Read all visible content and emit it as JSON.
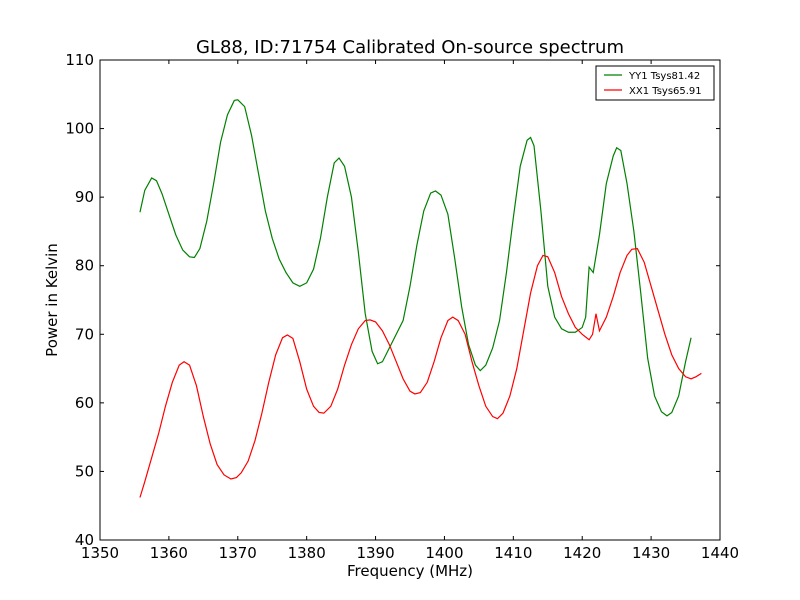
{
  "chart_data": {
    "type": "line",
    "title": "GL88, ID:71754 Calibrated On-source spectrum",
    "xlabel": "Frequency (MHz)",
    "ylabel": "Power in Kelvin",
    "xlim": [
      1350,
      1440
    ],
    "ylim": [
      40,
      110
    ],
    "xticks": [
      1350,
      1360,
      1370,
      1380,
      1390,
      1400,
      1410,
      1420,
      1430,
      1440
    ],
    "yticks": [
      40,
      50,
      60,
      70,
      80,
      90,
      100,
      110
    ],
    "grid": false,
    "legend_position": "top-right",
    "series": [
      {
        "name": "YY1 Tsys81.42",
        "color": "#008000",
        "points": [
          [
            1355.8,
            87.8
          ],
          [
            1356.5,
            91.0
          ],
          [
            1357.5,
            92.8
          ],
          [
            1358.2,
            92.4
          ],
          [
            1359.0,
            90.5
          ],
          [
            1360.0,
            87.5
          ],
          [
            1361.0,
            84.5
          ],
          [
            1362.0,
            82.3
          ],
          [
            1363.0,
            81.3
          ],
          [
            1363.7,
            81.2
          ],
          [
            1364.5,
            82.5
          ],
          [
            1365.5,
            86.5
          ],
          [
            1366.5,
            92.0
          ],
          [
            1367.5,
            98.0
          ],
          [
            1368.5,
            102.0
          ],
          [
            1369.5,
            104.1
          ],
          [
            1370.0,
            104.2
          ],
          [
            1371.0,
            103.2
          ],
          [
            1372.0,
            99.0
          ],
          [
            1373.0,
            93.5
          ],
          [
            1374.0,
            88.0
          ],
          [
            1375.0,
            84.0
          ],
          [
            1376.0,
            81.0
          ],
          [
            1377.0,
            79.0
          ],
          [
            1378.0,
            77.5
          ],
          [
            1379.0,
            77.0
          ],
          [
            1380.0,
            77.5
          ],
          [
            1381.0,
            79.5
          ],
          [
            1382.0,
            84.0
          ],
          [
            1383.0,
            90.0
          ],
          [
            1384.0,
            95.0
          ],
          [
            1384.7,
            95.7
          ],
          [
            1385.5,
            94.5
          ],
          [
            1386.5,
            90.0
          ],
          [
            1387.5,
            82.0
          ],
          [
            1388.5,
            73.0
          ],
          [
            1389.5,
            67.5
          ],
          [
            1390.3,
            65.7
          ],
          [
            1391.0,
            66.0
          ],
          [
            1392.0,
            68.0
          ],
          [
            1393.0,
            70.0
          ],
          [
            1394.0,
            72.0
          ],
          [
            1395.0,
            77.0
          ],
          [
            1396.0,
            83.0
          ],
          [
            1397.0,
            88.0
          ],
          [
            1398.0,
            90.6
          ],
          [
            1398.7,
            90.9
          ],
          [
            1399.5,
            90.3
          ],
          [
            1400.5,
            87.5
          ],
          [
            1401.5,
            81.0
          ],
          [
            1402.5,
            74.0
          ],
          [
            1403.5,
            68.5
          ],
          [
            1404.5,
            65.5
          ],
          [
            1405.2,
            64.7
          ],
          [
            1406.0,
            65.5
          ],
          [
            1407.0,
            68.0
          ],
          [
            1408.0,
            72.0
          ],
          [
            1409.0,
            79.0
          ],
          [
            1410.0,
            87.0
          ],
          [
            1411.0,
            94.5
          ],
          [
            1412.0,
            98.3
          ],
          [
            1412.5,
            98.7
          ],
          [
            1413.0,
            97.5
          ],
          [
            1414.0,
            88.0
          ],
          [
            1415.0,
            77.0
          ],
          [
            1416.0,
            72.5
          ],
          [
            1417.0,
            70.8
          ],
          [
            1418.0,
            70.3
          ],
          [
            1419.0,
            70.3
          ],
          [
            1420.0,
            71.0
          ],
          [
            1420.5,
            72.5
          ],
          [
            1421.0,
            79.8
          ],
          [
            1421.6,
            79.0
          ],
          [
            1422.5,
            84.5
          ],
          [
            1423.5,
            92.0
          ],
          [
            1424.5,
            96.0
          ],
          [
            1425.0,
            97.2
          ],
          [
            1425.6,
            96.8
          ],
          [
            1426.5,
            92.0
          ],
          [
            1427.5,
            85.0
          ],
          [
            1428.5,
            76.0
          ],
          [
            1429.5,
            66.5
          ],
          [
            1430.5,
            61.0
          ],
          [
            1431.5,
            58.7
          ],
          [
            1432.3,
            58.1
          ],
          [
            1433.0,
            58.6
          ],
          [
            1434.0,
            61.0
          ],
          [
            1435.0,
            66.0
          ],
          [
            1435.8,
            69.5
          ]
        ]
      },
      {
        "name": "XX1 Tsys65.91",
        "color": "#ff0000",
        "points": [
          [
            1355.8,
            46.2
          ],
          [
            1356.5,
            48.5
          ],
          [
            1357.5,
            52.0
          ],
          [
            1358.5,
            55.5
          ],
          [
            1359.5,
            59.5
          ],
          [
            1360.5,
            63.0
          ],
          [
            1361.5,
            65.5
          ],
          [
            1362.2,
            66.0
          ],
          [
            1363.0,
            65.5
          ],
          [
            1364.0,
            62.5
          ],
          [
            1365.0,
            58.0
          ],
          [
            1366.0,
            54.0
          ],
          [
            1367.0,
            51.0
          ],
          [
            1368.0,
            49.5
          ],
          [
            1369.0,
            48.9
          ],
          [
            1369.8,
            49.1
          ],
          [
            1370.5,
            49.8
          ],
          [
            1371.5,
            51.5
          ],
          [
            1372.5,
            54.5
          ],
          [
            1373.5,
            58.5
          ],
          [
            1374.5,
            63.0
          ],
          [
            1375.5,
            67.0
          ],
          [
            1376.5,
            69.5
          ],
          [
            1377.2,
            69.9
          ],
          [
            1378.0,
            69.4
          ],
          [
            1379.0,
            66.0
          ],
          [
            1380.0,
            62.0
          ],
          [
            1381.0,
            59.5
          ],
          [
            1381.8,
            58.6
          ],
          [
            1382.5,
            58.5
          ],
          [
            1383.5,
            59.5
          ],
          [
            1384.5,
            62.0
          ],
          [
            1385.5,
            65.5
          ],
          [
            1386.5,
            68.5
          ],
          [
            1387.5,
            70.8
          ],
          [
            1388.5,
            72.0
          ],
          [
            1389.2,
            72.1
          ],
          [
            1390.0,
            71.8
          ],
          [
            1391.0,
            70.5
          ],
          [
            1392.0,
            68.5
          ],
          [
            1393.0,
            66.0
          ],
          [
            1394.0,
            63.5
          ],
          [
            1395.0,
            61.7
          ],
          [
            1395.7,
            61.3
          ],
          [
            1396.5,
            61.5
          ],
          [
            1397.5,
            63.0
          ],
          [
            1398.5,
            66.0
          ],
          [
            1399.5,
            69.5
          ],
          [
            1400.5,
            72.0
          ],
          [
            1401.2,
            72.5
          ],
          [
            1402.0,
            72.0
          ],
          [
            1403.0,
            70.0
          ],
          [
            1404.0,
            66.0
          ],
          [
            1405.0,
            62.5
          ],
          [
            1406.0,
            59.5
          ],
          [
            1407.0,
            58.0
          ],
          [
            1407.7,
            57.7
          ],
          [
            1408.5,
            58.5
          ],
          [
            1409.5,
            61.0
          ],
          [
            1410.5,
            65.0
          ],
          [
            1411.5,
            70.5
          ],
          [
            1412.5,
            76.0
          ],
          [
            1413.5,
            80.0
          ],
          [
            1414.3,
            81.5
          ],
          [
            1415.0,
            81.3
          ],
          [
            1416.0,
            79.0
          ],
          [
            1417.0,
            75.5
          ],
          [
            1418.0,
            73.0
          ],
          [
            1419.0,
            71.0
          ],
          [
            1420.0,
            70.0
          ],
          [
            1421.0,
            69.2
          ],
          [
            1421.5,
            70.0
          ],
          [
            1422.0,
            73.0
          ],
          [
            1422.5,
            70.5
          ],
          [
            1423.5,
            72.5
          ],
          [
            1424.5,
            75.5
          ],
          [
            1425.5,
            79.0
          ],
          [
            1426.5,
            81.5
          ],
          [
            1427.2,
            82.4
          ],
          [
            1428.0,
            82.5
          ],
          [
            1429.0,
            80.5
          ],
          [
            1430.0,
            77.0
          ],
          [
            1431.0,
            73.5
          ],
          [
            1432.0,
            70.0
          ],
          [
            1433.0,
            67.0
          ],
          [
            1434.0,
            65.0
          ],
          [
            1435.0,
            63.8
          ],
          [
            1435.8,
            63.5
          ],
          [
            1436.5,
            63.8
          ],
          [
            1437.3,
            64.3
          ]
        ]
      }
    ]
  }
}
